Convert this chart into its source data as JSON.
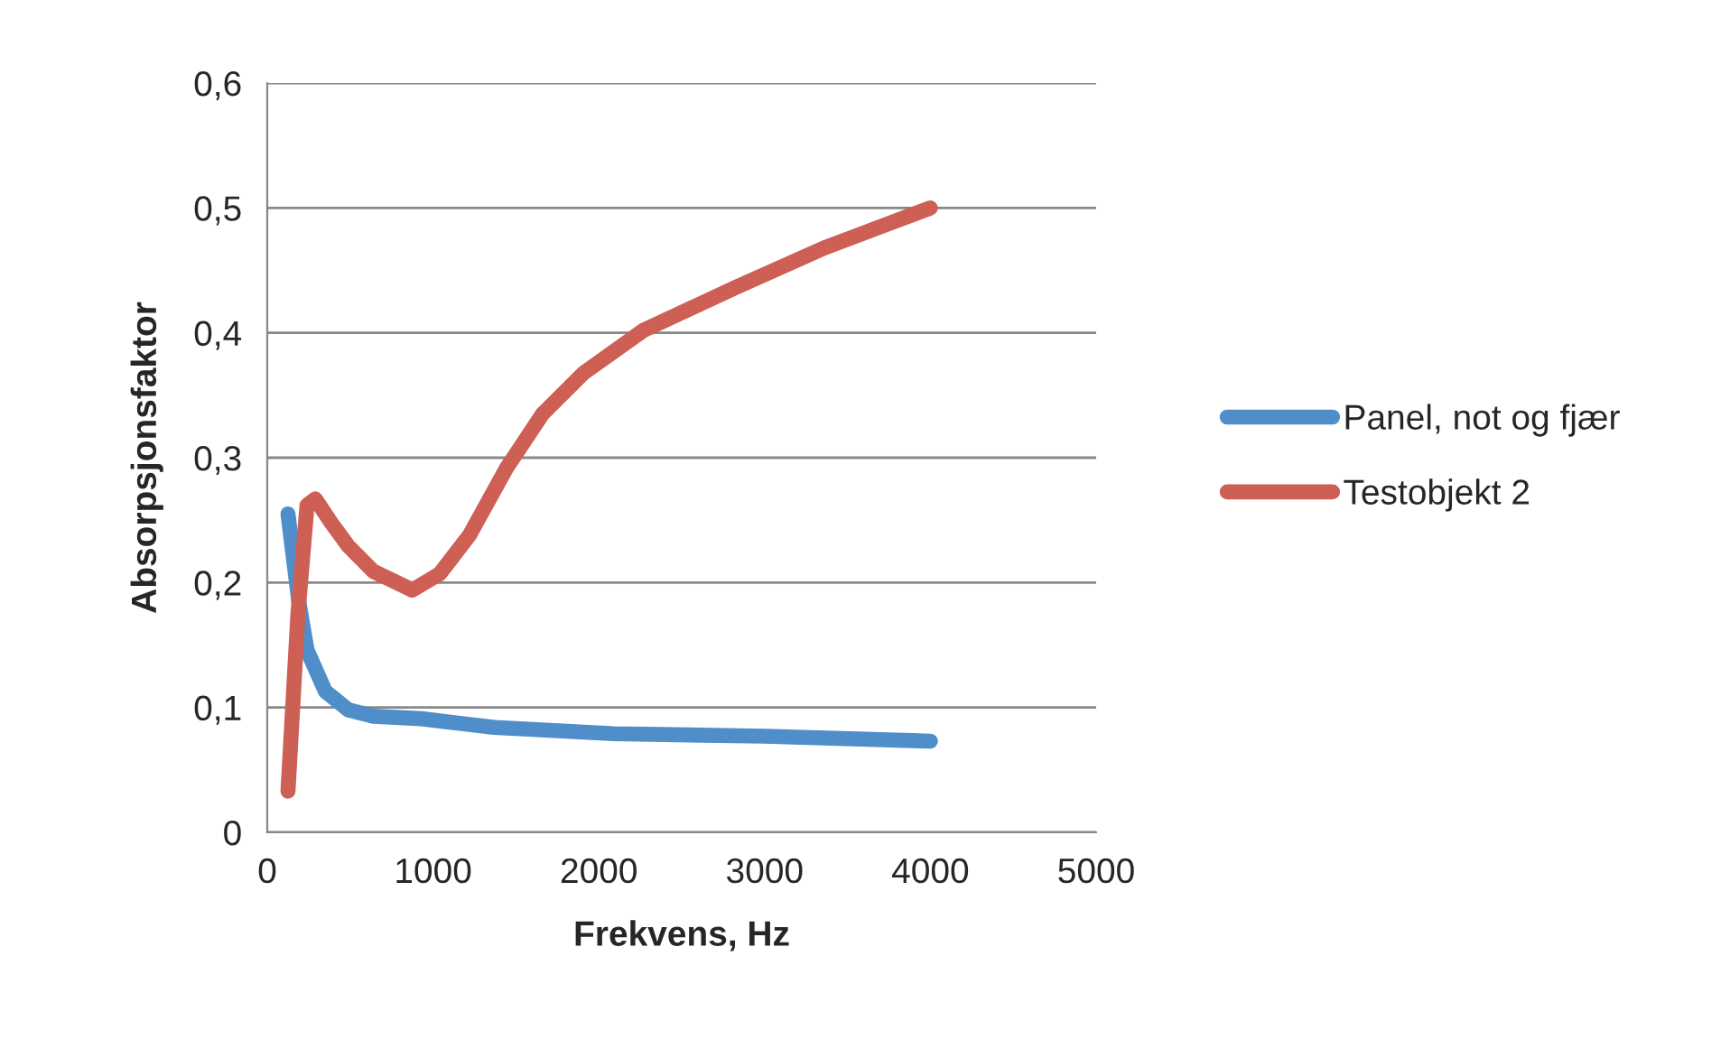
{
  "chart_data": {
    "type": "line",
    "xlabel": "Frekvens, Hz",
    "ylabel": "Absorpsjonsfaktor",
    "series": [
      {
        "name": "Panel, not og fjær",
        "color": "#4f8ec8",
        "x": [
          125,
          190,
          240,
          350,
          490,
          640,
          930,
          1370,
          2090,
          3000,
          4000
        ],
        "values": [
          0.255,
          0.185,
          0.146,
          0.113,
          0.098,
          0.093,
          0.091,
          0.084,
          0.079,
          0.077,
          0.073
        ]
      },
      {
        "name": "Testobjekt 2",
        "color": "#cd5f55",
        "x": [
          125,
          185,
          240,
          290,
          385,
          490,
          640,
          875,
          1040,
          1220,
          1440,
          1660,
          1910,
          2270,
          2820,
          3360,
          4000
        ],
        "values": [
          0.033,
          0.175,
          0.262,
          0.267,
          0.248,
          0.229,
          0.209,
          0.194,
          0.207,
          0.238,
          0.291,
          0.335,
          0.368,
          0.402,
          0.436,
          0.468,
          0.5
        ]
      }
    ],
    "xlim": [
      0,
      5000
    ],
    "xticks": [
      0,
      1000,
      2000,
      3000,
      4000,
      5000
    ],
    "ylim": [
      0,
      0.6
    ],
    "yticks": [
      {
        "value": 0,
        "label": "0"
      },
      {
        "value": 0.1,
        "label": "0,1"
      },
      {
        "value": 0.2,
        "label": "0,2"
      },
      {
        "value": 0.3,
        "label": "0,3"
      },
      {
        "value": 0.4,
        "label": "0,4"
      },
      {
        "value": 0.5,
        "label": "0,5"
      },
      {
        "value": 0.6,
        "label": "0,6"
      }
    ],
    "grid": "y",
    "legend": "right",
    "marker": "none",
    "line_style": "solid"
  }
}
